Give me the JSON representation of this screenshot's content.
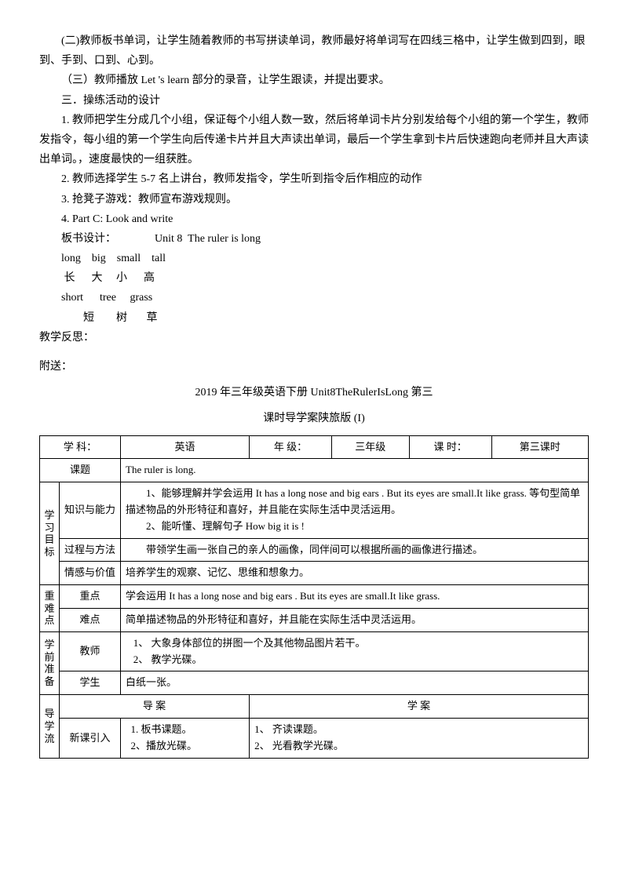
{
  "paragraphs": {
    "p1": "(二)教师板书单词，让学生随着教师的书写拼读单词，教师最好将单词写在四线三格中，让学生做到四到，眼到、手到、口到、心到。",
    "p2": "（三）教师播放 Let 's learn 部分的录音，让学生跟读，并提出要求。",
    "p3": "三．操练活动的设计",
    "p4": "1. 教师把学生分成几个小组，保证每个小组人数一致，然后将单词卡片分别发给每个小组的第一个学生，教师发指令，每小组的第一个学生向后传递卡片并且大声读出单词，最后一个学生拿到卡片后快速跑向老师并且大声读出单词。，速度最快的一组获胜。",
    "p5": "2. 教师选择学生 5-7 名上讲台，教师发指令，学生听到指令后作相应的动作",
    "p6": "3. 抢凳子游戏：教师宣布游戏规则。",
    "p7": "4. Part C: Look and write",
    "board_label": "板书设计：              Unit 8  The ruler is long",
    "line1": "long    big    small    tall",
    "line2": " 长      大     小      高",
    "line3": "short      tree     grass",
    "line4": "        短        树       草",
    "reflect": "教学反思：",
    "attach": "附送：",
    "title1": "2019 年三年级英语下册 Unit8TheRulerIsLong 第三",
    "title2": "课时导学案陕旅版 (I)"
  },
  "table": {
    "r1": {
      "c1": "学  科：",
      "c2": "英语",
      "c3": "年  级：",
      "c4": "三年级",
      "c5": "课  时：",
      "c6": "第三课时"
    },
    "r2": {
      "c1": "课题",
      "c2": "The ruler is long."
    },
    "goals_label": "学习目标",
    "r3": {
      "c1": "知识与能力",
      "c2": "        1、能够理解并学会运用 It has a long nose and big ears . But its eyes are small.It like grass. 等句型简单描述物品的外形特征和喜好，并且能在实际生活中灵活运用。\n        2、能听懂、理解句子 How big it is !"
    },
    "r4": {
      "c1": "过程与方法",
      "c2": "        带领学生画一张自己的亲人的画像，同伴间可以根据所画的画像进行描述。"
    },
    "r5": {
      "c1": "情感与价值",
      "c2": "   培养学生的观察、记忆、思维和想象力。"
    },
    "diff_label": "重难点",
    "r6": {
      "c1": "重点",
      "c2": "   学会运用 It has a long nose and big ears . But its eyes are small.It like grass."
    },
    "r7": {
      "c1": "难点",
      "c2": "   简单描述物品的外形特征和喜好，并且能在实际生活中灵活运用。"
    },
    "prep_label": "学前准备",
    "r8": {
      "c1": "教师",
      "c2": "   1、 大象身体部位的拼图一个及其他物品图片若干。\n   2、 教学光碟。"
    },
    "r9": {
      "c1": "学生",
      "c2": "  白纸一张。"
    },
    "flow_label": "导学流",
    "r10": {
      "c1": "导    案",
      "c2": "学    案"
    },
    "r11": {
      "side": "新课引入",
      "c1": "  1. 板书课题。\n  2、播放光碟。",
      "c2": "1、 齐读课题。\n2、 光看教学光碟。"
    }
  }
}
